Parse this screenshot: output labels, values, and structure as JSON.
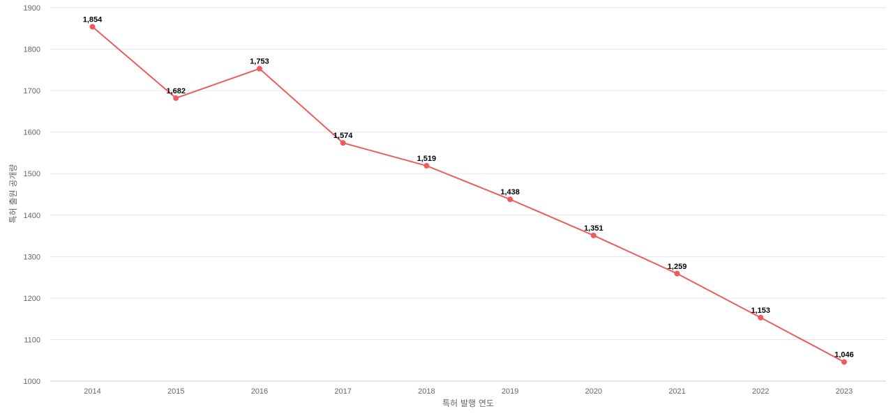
{
  "chart_data": {
    "type": "line",
    "title": "",
    "xlabel": "특허 발행 연도",
    "ylabel": "특허 출원 공개량",
    "categories": [
      "2014",
      "2015",
      "2016",
      "2017",
      "2018",
      "2019",
      "2020",
      "2021",
      "2022",
      "2023"
    ],
    "series": [
      {
        "values": [
          1854,
          1682,
          1753,
          1574,
          1519,
          1438,
          1351,
          1259,
          1153,
          1046
        ],
        "data_labels": [
          "1,854",
          "1,682",
          "1,753",
          "1,574",
          "1,519",
          "1,438",
          "1,351",
          "1,259",
          "1,153",
          "1,046"
        ],
        "color": "#ef5b5b"
      }
    ],
    "ylim": [
      1000,
      1900
    ],
    "yticks": [
      "1000",
      "1100",
      "1200",
      "1300",
      "1400",
      "1500",
      "1600",
      "1700",
      "1800",
      "1900"
    ],
    "grid": true,
    "legend": "none"
  }
}
